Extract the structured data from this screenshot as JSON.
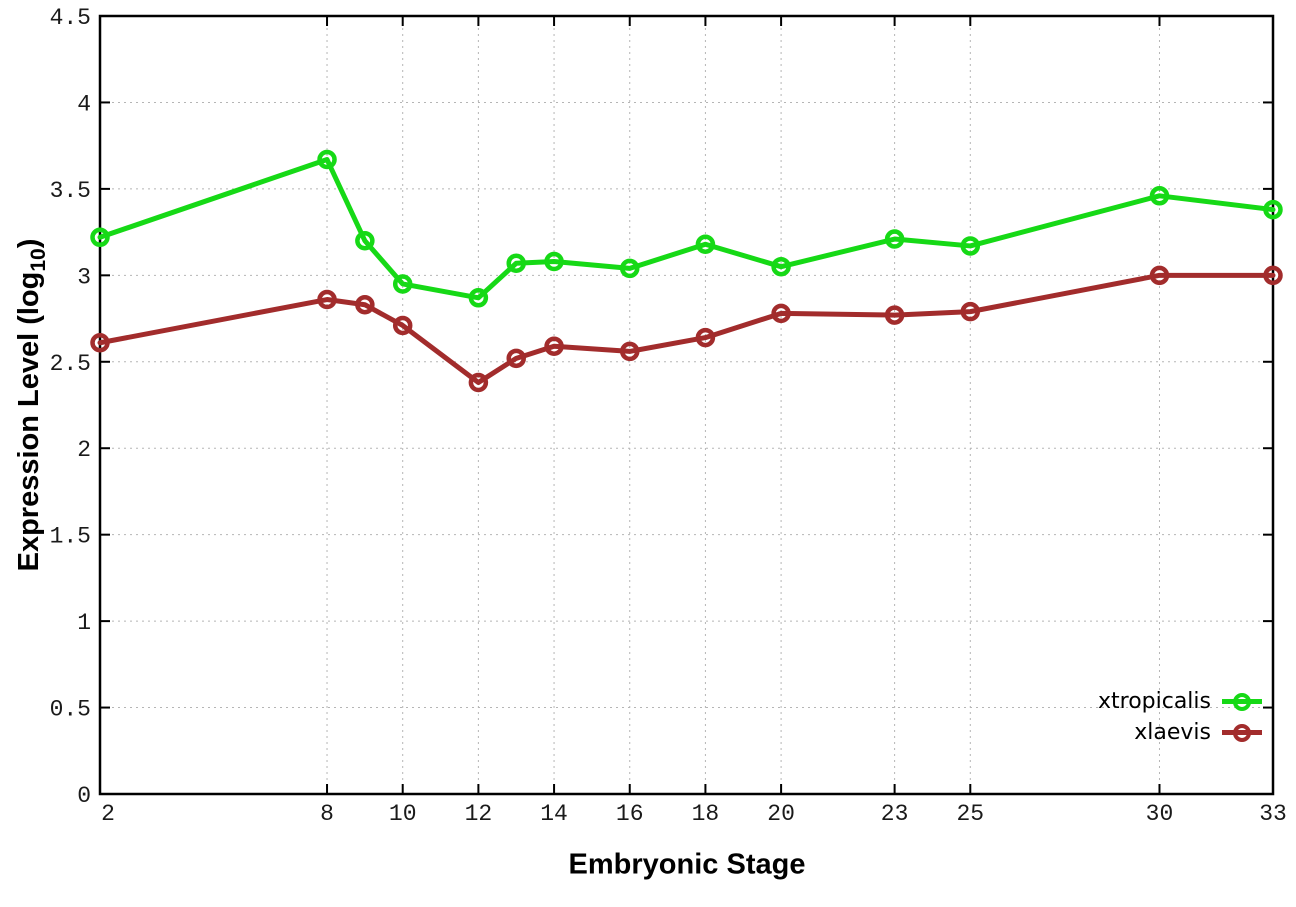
{
  "chart_data": {
    "type": "line",
    "title": "",
    "xlabel": "Embryonic Stage",
    "ylabel": "Expression Level (log10)",
    "ylabel_parts": {
      "main": "Expression Level (log",
      "sub": "10",
      "close": ")"
    },
    "x": [
      2,
      8,
      9,
      10,
      12,
      13,
      14,
      16,
      18,
      20,
      23,
      25,
      30,
      33
    ],
    "series": [
      {
        "name": "xtropicalis",
        "color": "#16d916",
        "values": [
          3.22,
          3.67,
          3.2,
          2.95,
          2.87,
          3.07,
          3.08,
          3.04,
          3.18,
          3.05,
          3.21,
          3.17,
          3.46,
          3.38
        ]
      },
      {
        "name": "xlaevis",
        "color": "#a22c2c",
        "values": [
          2.61,
          2.86,
          2.83,
          2.71,
          2.38,
          2.52,
          2.59,
          2.56,
          2.64,
          2.78,
          2.77,
          2.79,
          3.0,
          3.0
        ]
      }
    ],
    "x_tick_values": [
      2,
      8,
      10,
      12,
      14,
      16,
      18,
      20,
      23,
      25,
      30,
      33
    ],
    "x_tick_labels": [
      "2",
      "8",
      "10",
      "12",
      "14",
      "16",
      "18",
      "20",
      "23",
      "25",
      "30",
      "33"
    ],
    "y_tick_values": [
      0,
      0.5,
      1,
      1.5,
      2,
      2.5,
      3,
      3.5,
      4,
      4.5
    ],
    "y_tick_labels": [
      "0",
      "0.5",
      "1",
      "1.5",
      "2",
      "2.5",
      "3",
      "3.5",
      "4",
      "4.5"
    ],
    "xlim": [
      2,
      33
    ],
    "ylim": [
      0,
      4.5
    ],
    "grid": true,
    "legend_position": "inside-bottom-right",
    "marker": "open-circle",
    "colors": {
      "background": "#ffffff",
      "axis": "#000000",
      "grid": "#b5b5b5",
      "tick_label": "#1a1a1a"
    }
  }
}
